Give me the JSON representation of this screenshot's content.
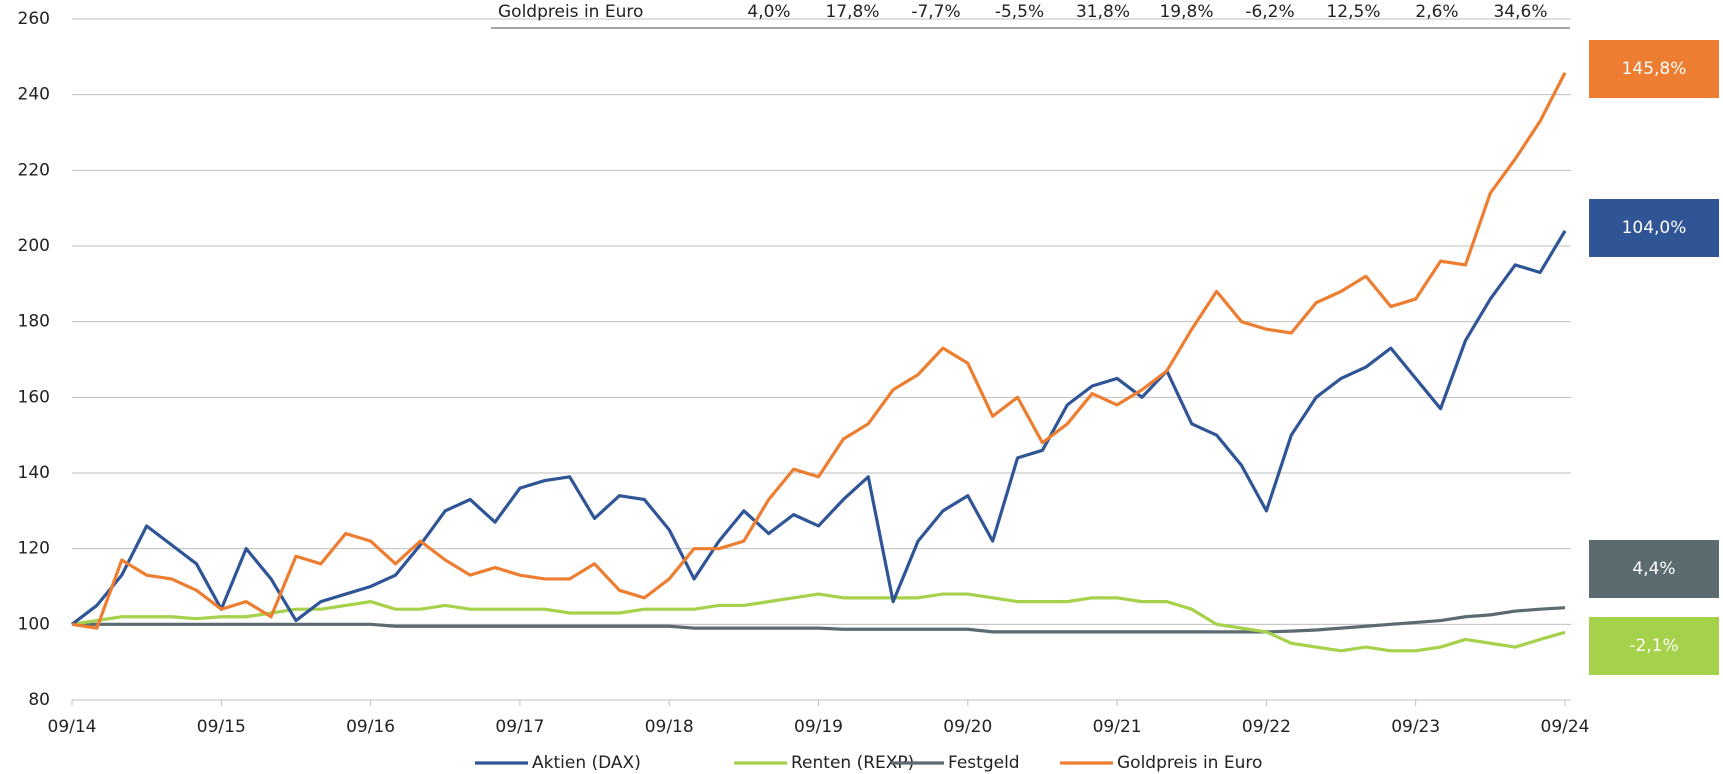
{
  "chart_data": {
    "type": "line",
    "xlim": [
      0,
      120
    ],
    "xticks": [
      {
        "value": 0,
        "label": "09/14"
      },
      {
        "value": 12,
        "label": "09/15"
      },
      {
        "value": 24,
        "label": "09/16"
      },
      {
        "value": 36,
        "label": "09/17"
      },
      {
        "value": 48,
        "label": "09/18"
      },
      {
        "value": 60,
        "label": "09/19"
      },
      {
        "value": 72,
        "label": "09/20"
      },
      {
        "value": 84,
        "label": "09/21"
      },
      {
        "value": 96,
        "label": "09/22"
      },
      {
        "value": 108,
        "label": "09/23"
      },
      {
        "value": 120,
        "label": "09/24"
      }
    ],
    "ylim": [
      80,
      260
    ],
    "yticks": [
      80,
      100,
      120,
      140,
      160,
      180,
      200,
      220,
      240,
      260
    ],
    "grid": true,
    "legend": "bottom",
    "x": [
      0,
      2,
      4,
      6,
      8,
      10,
      12,
      14,
      16,
      18,
      20,
      22,
      24,
      26,
      28,
      30,
      32,
      34,
      36,
      38,
      40,
      42,
      44,
      46,
      48,
      50,
      52,
      54,
      56,
      58,
      60,
      62,
      64,
      66,
      68,
      70,
      72,
      74,
      76,
      78,
      80,
      82,
      84,
      86,
      88,
      90,
      92,
      94,
      96,
      98,
      100,
      102,
      104,
      106,
      108,
      110,
      112,
      114,
      116,
      118,
      120
    ],
    "series": [
      {
        "name": "Aktien (DAX)",
        "color": "#2f5597",
        "end_value": 104.0,
        "end_label": "104,0%",
        "values": [
          100,
          105,
          113,
          126,
          121,
          116,
          104,
          120,
          112,
          101,
          106,
          108,
          110,
          113,
          121,
          130,
          133,
          127,
          136,
          138,
          139,
          128,
          134,
          133,
          125,
          112,
          122,
          130,
          124,
          129,
          126,
          133,
          139,
          106,
          122,
          130,
          134,
          122,
          144,
          146,
          158,
          163,
          165,
          160,
          167,
          153,
          150,
          142,
          130,
          150,
          160,
          165,
          168,
          173,
          165,
          157,
          175,
          186,
          195,
          193,
          204
        ]
      },
      {
        "name": "Renten (REXP)",
        "color": "#a5d24a",
        "end_value": -2.1,
        "end_label": "-2,1%",
        "values": [
          100,
          101,
          102,
          102,
          102,
          101.5,
          102,
          102,
          103,
          104,
          104,
          105,
          106,
          104,
          104,
          105,
          104,
          104,
          104,
          104,
          103,
          103,
          103,
          104,
          104,
          104,
          105,
          105,
          106,
          107,
          108,
          107,
          107,
          107,
          107,
          108,
          108,
          107,
          106,
          106,
          106,
          107,
          107,
          106,
          106,
          104,
          100,
          99,
          98,
          95,
          94,
          93,
          94,
          93,
          93,
          94,
          96,
          95,
          94,
          96,
          97.9
        ]
      },
      {
        "name": "Festgeld",
        "color": "#5b6b70",
        "end_value": 4.4,
        "end_label": "4,4%",
        "values": [
          100,
          100,
          100,
          100,
          100,
          100,
          100,
          100,
          100,
          100,
          100,
          100,
          100,
          99.5,
          99.5,
          99.5,
          99.5,
          99.5,
          99.5,
          99.5,
          99.5,
          99.5,
          99.5,
          99.5,
          99.5,
          99,
          99,
          99,
          99,
          99,
          99,
          98.7,
          98.7,
          98.7,
          98.7,
          98.7,
          98.7,
          98,
          98,
          98,
          98,
          98,
          98,
          98,
          98,
          98,
          98,
          98,
          98,
          98.2,
          98.5,
          99,
          99.5,
          100,
          100.5,
          101,
          102,
          102.5,
          103.5,
          104,
          104.4
        ]
      },
      {
        "name": "Goldpreis in Euro",
        "color": "#ed7d31",
        "end_value": 145.8,
        "end_label": "145,8%",
        "values": [
          100,
          99,
          117,
          113,
          112,
          109,
          104,
          106,
          102,
          118,
          116,
          124,
          122,
          116,
          122,
          117,
          113,
          115,
          113,
          112,
          112,
          116,
          109,
          107,
          112,
          120,
          120,
          122,
          133,
          141,
          139,
          149,
          153,
          162,
          166,
          173,
          169,
          155,
          160,
          148,
          153,
          161,
          158,
          162,
          167,
          178,
          188,
          180,
          178,
          177,
          185,
          188,
          192,
          184,
          186,
          196,
          195,
          214,
          223,
          233,
          245.8
        ]
      }
    ],
    "table_row": {
      "label": "Goldpreis in Euro",
      "values": [
        4.0,
        17.8,
        -7.7,
        -5.5,
        31.8,
        19.8,
        -6.2,
        12.5,
        2.6,
        34.6
      ],
      "value_labels": [
        "4,0%",
        "17,8%",
        "-7,7%",
        "-5,5%",
        "31,8%",
        "19,8%",
        "-6,2%",
        "12,5%",
        "2,6%",
        "34,6%"
      ]
    }
  }
}
